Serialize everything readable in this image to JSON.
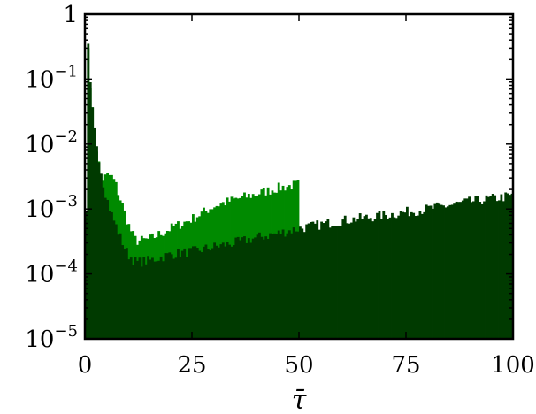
{
  "chart_data": {
    "type": "bar",
    "title": "",
    "xlabel": "τ̄",
    "ylabel": "",
    "xlim": [
      0,
      100
    ],
    "ylim": [
      1e-05,
      1
    ],
    "yscale": "log",
    "grid": false,
    "legend": "none",
    "x_ticks": [
      0,
      25,
      50,
      75,
      100
    ],
    "x_tick_labels": [
      "0",
      "25",
      "50",
      "75",
      "100"
    ],
    "y_ticks": [
      1e-05,
      0.0001,
      0.001,
      0.01,
      0.1,
      1
    ],
    "y_tick_labels": [
      {
        "base": "10",
        "exp": "−5"
      },
      {
        "base": "10",
        "exp": "−4"
      },
      {
        "base": "10",
        "exp": "−3"
      },
      {
        "base": "10",
        "exp": "−2"
      },
      {
        "base": "10",
        "exp": "−1"
      },
      {
        "base": "1",
        "exp": ""
      }
    ],
    "bin_width": 0.5,
    "series": [
      {
        "color": "#008a00",
        "range": [
          0,
          50
        ],
        "anchors": [
          [
            0,
            1e-05
          ],
          [
            0.5,
            0.06
          ],
          [
            0.75,
            0.3
          ],
          [
            1,
            0.15
          ],
          [
            1.5,
            0.05
          ],
          [
            2,
            0.02
          ],
          [
            2.5,
            0.012
          ],
          [
            3,
            0.006
          ],
          [
            4,
            0.0028
          ],
          [
            5,
            0.0032
          ],
          [
            6,
            0.0033
          ],
          [
            7,
            0.0026
          ],
          [
            8,
            0.0016
          ],
          [
            9,
            0.001
          ],
          [
            10,
            0.0006
          ],
          [
            11,
            0.00042
          ],
          [
            12,
            0.00032
          ],
          [
            15,
            0.00034
          ],
          [
            20,
            0.0005
          ],
          [
            25,
            0.0007
          ],
          [
            30,
            0.0011
          ],
          [
            35,
            0.0014
          ],
          [
            40,
            0.0017
          ],
          [
            45,
            0.0021
          ],
          [
            50,
            0.0024
          ]
        ]
      },
      {
        "color": "#003a00",
        "range": [
          0,
          100
        ],
        "anchors": [
          [
            0,
            1e-05
          ],
          [
            0.5,
            0.08
          ],
          [
            0.75,
            0.35
          ],
          [
            1,
            0.12
          ],
          [
            1.5,
            0.05
          ],
          [
            2,
            0.02
          ],
          [
            3,
            0.008
          ],
          [
            4,
            0.003
          ],
          [
            5,
            0.0015
          ],
          [
            6,
            0.0009
          ],
          [
            7,
            0.0006
          ],
          [
            8,
            0.0004
          ],
          [
            9,
            0.00028
          ],
          [
            10,
            0.0002
          ],
          [
            12,
            0.00015
          ],
          [
            15,
            0.00016
          ],
          [
            20,
            0.0002
          ],
          [
            25,
            0.00022
          ],
          [
            30,
            0.00026
          ],
          [
            35,
            0.0003
          ],
          [
            40,
            0.00036
          ],
          [
            45,
            0.00042
          ],
          [
            50,
            0.0005
          ],
          [
            60,
            0.00066
          ],
          [
            70,
            0.0008
          ],
          [
            80,
            0.001
          ],
          [
            90,
            0.0013
          ],
          [
            100,
            0.0016
          ]
        ]
      }
    ]
  }
}
